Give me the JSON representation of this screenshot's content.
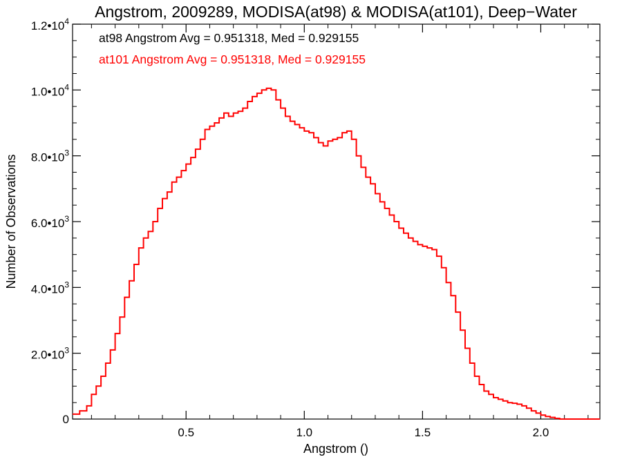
{
  "colors": {
    "background": "#ffffff",
    "axes": "#000000",
    "series_at98": "#000000",
    "series_at101": "#ff0000"
  },
  "chart_data": {
    "type": "line",
    "step": true,
    "title": "Angstrom, 2009289, MODISA(at98) & MODISA(at101), Deep−Water",
    "xlabel": "Angstrom ()",
    "ylabel": "Number of Observations",
    "xlim": [
      0.02,
      2.25
    ],
    "ylim": [
      0,
      12000
    ],
    "grid": false,
    "annotations": [
      {
        "text": "at98 Angstrom Avg = 0.951318, Med = 0.929155",
        "color": "#000000"
      },
      {
        "text": "at101 Angstrom Avg = 0.951318, Med = 0.929155",
        "color": "#ff0000"
      }
    ],
    "x_ticks": [
      {
        "value": 0.5,
        "label": "0.5"
      },
      {
        "value": 1.0,
        "label": "1.0"
      },
      {
        "value": 1.5,
        "label": "1.5"
      },
      {
        "value": 2.0,
        "label": "2.0"
      }
    ],
    "y_ticks": [
      {
        "value": 0,
        "mantissa": "0",
        "exponent": ""
      },
      {
        "value": 2000,
        "mantissa": "2.0•10",
        "exponent": "3"
      },
      {
        "value": 4000,
        "mantissa": "4.0•10",
        "exponent": "3"
      },
      {
        "value": 6000,
        "mantissa": "6.0•10",
        "exponent": "3"
      },
      {
        "value": 8000,
        "mantissa": "8.0•10",
        "exponent": "3"
      },
      {
        "value": 10000,
        "mantissa": "1.0•10",
        "exponent": "4"
      },
      {
        "value": 12000,
        "mantissa": "1.2•10",
        "exponent": "4"
      }
    ],
    "series": [
      {
        "color": "#ff0000",
        "x": [
          0.02,
          0.05,
          0.08,
          0.1,
          0.12,
          0.14,
          0.16,
          0.18,
          0.2,
          0.22,
          0.24,
          0.26,
          0.28,
          0.3,
          0.32,
          0.34,
          0.36,
          0.38,
          0.4,
          0.42,
          0.44,
          0.46,
          0.48,
          0.5,
          0.52,
          0.54,
          0.56,
          0.58,
          0.6,
          0.62,
          0.64,
          0.66,
          0.68,
          0.7,
          0.72,
          0.74,
          0.76,
          0.78,
          0.8,
          0.82,
          0.84,
          0.86,
          0.88,
          0.9,
          0.92,
          0.94,
          0.96,
          0.98,
          1.0,
          1.02,
          1.04,
          1.06,
          1.08,
          1.1,
          1.12,
          1.14,
          1.16,
          1.18,
          1.2,
          1.22,
          1.24,
          1.26,
          1.28,
          1.3,
          1.32,
          1.34,
          1.36,
          1.38,
          1.4,
          1.42,
          1.44,
          1.46,
          1.48,
          1.5,
          1.52,
          1.54,
          1.56,
          1.58,
          1.6,
          1.62,
          1.64,
          1.66,
          1.68,
          1.7,
          1.72,
          1.74,
          1.76,
          1.78,
          1.8,
          1.82,
          1.84,
          1.86,
          1.88,
          1.9,
          1.92,
          1.94,
          1.96,
          1.98,
          2.0,
          2.02,
          2.04,
          2.06,
          2.08,
          2.1,
          2.12,
          2.14,
          2.16,
          2.18,
          2.2,
          2.22
        ],
        "values": [
          150,
          250,
          400,
          750,
          1000,
          1300,
          1700,
          2100,
          2600,
          3100,
          3700,
          4200,
          4700,
          5200,
          5500,
          5700,
          6000,
          6400,
          6700,
          6900,
          7200,
          7350,
          7550,
          7750,
          7950,
          8200,
          8500,
          8800,
          8900,
          9000,
          9150,
          9300,
          9200,
          9300,
          9350,
          9450,
          9650,
          9800,
          9900,
          10000,
          10050,
          10000,
          9700,
          9450,
          9200,
          9050,
          8950,
          8850,
          8750,
          8700,
          8550,
          8400,
          8300,
          8450,
          8500,
          8550,
          8700,
          8750,
          8500,
          8000,
          7650,
          7350,
          7150,
          6850,
          6600,
          6400,
          6200,
          6000,
          5800,
          5650,
          5500,
          5400,
          5300,
          5250,
          5200,
          5150,
          4950,
          4600,
          4150,
          3750,
          3250,
          2700,
          2150,
          1700,
          1300,
          1050,
          850,
          750,
          650,
          600,
          550,
          500,
          480,
          450,
          400,
          330,
          250,
          180,
          120,
          80,
          50,
          20,
          0,
          0,
          0,
          0,
          0,
          0,
          0,
          0
        ]
      }
    ]
  }
}
